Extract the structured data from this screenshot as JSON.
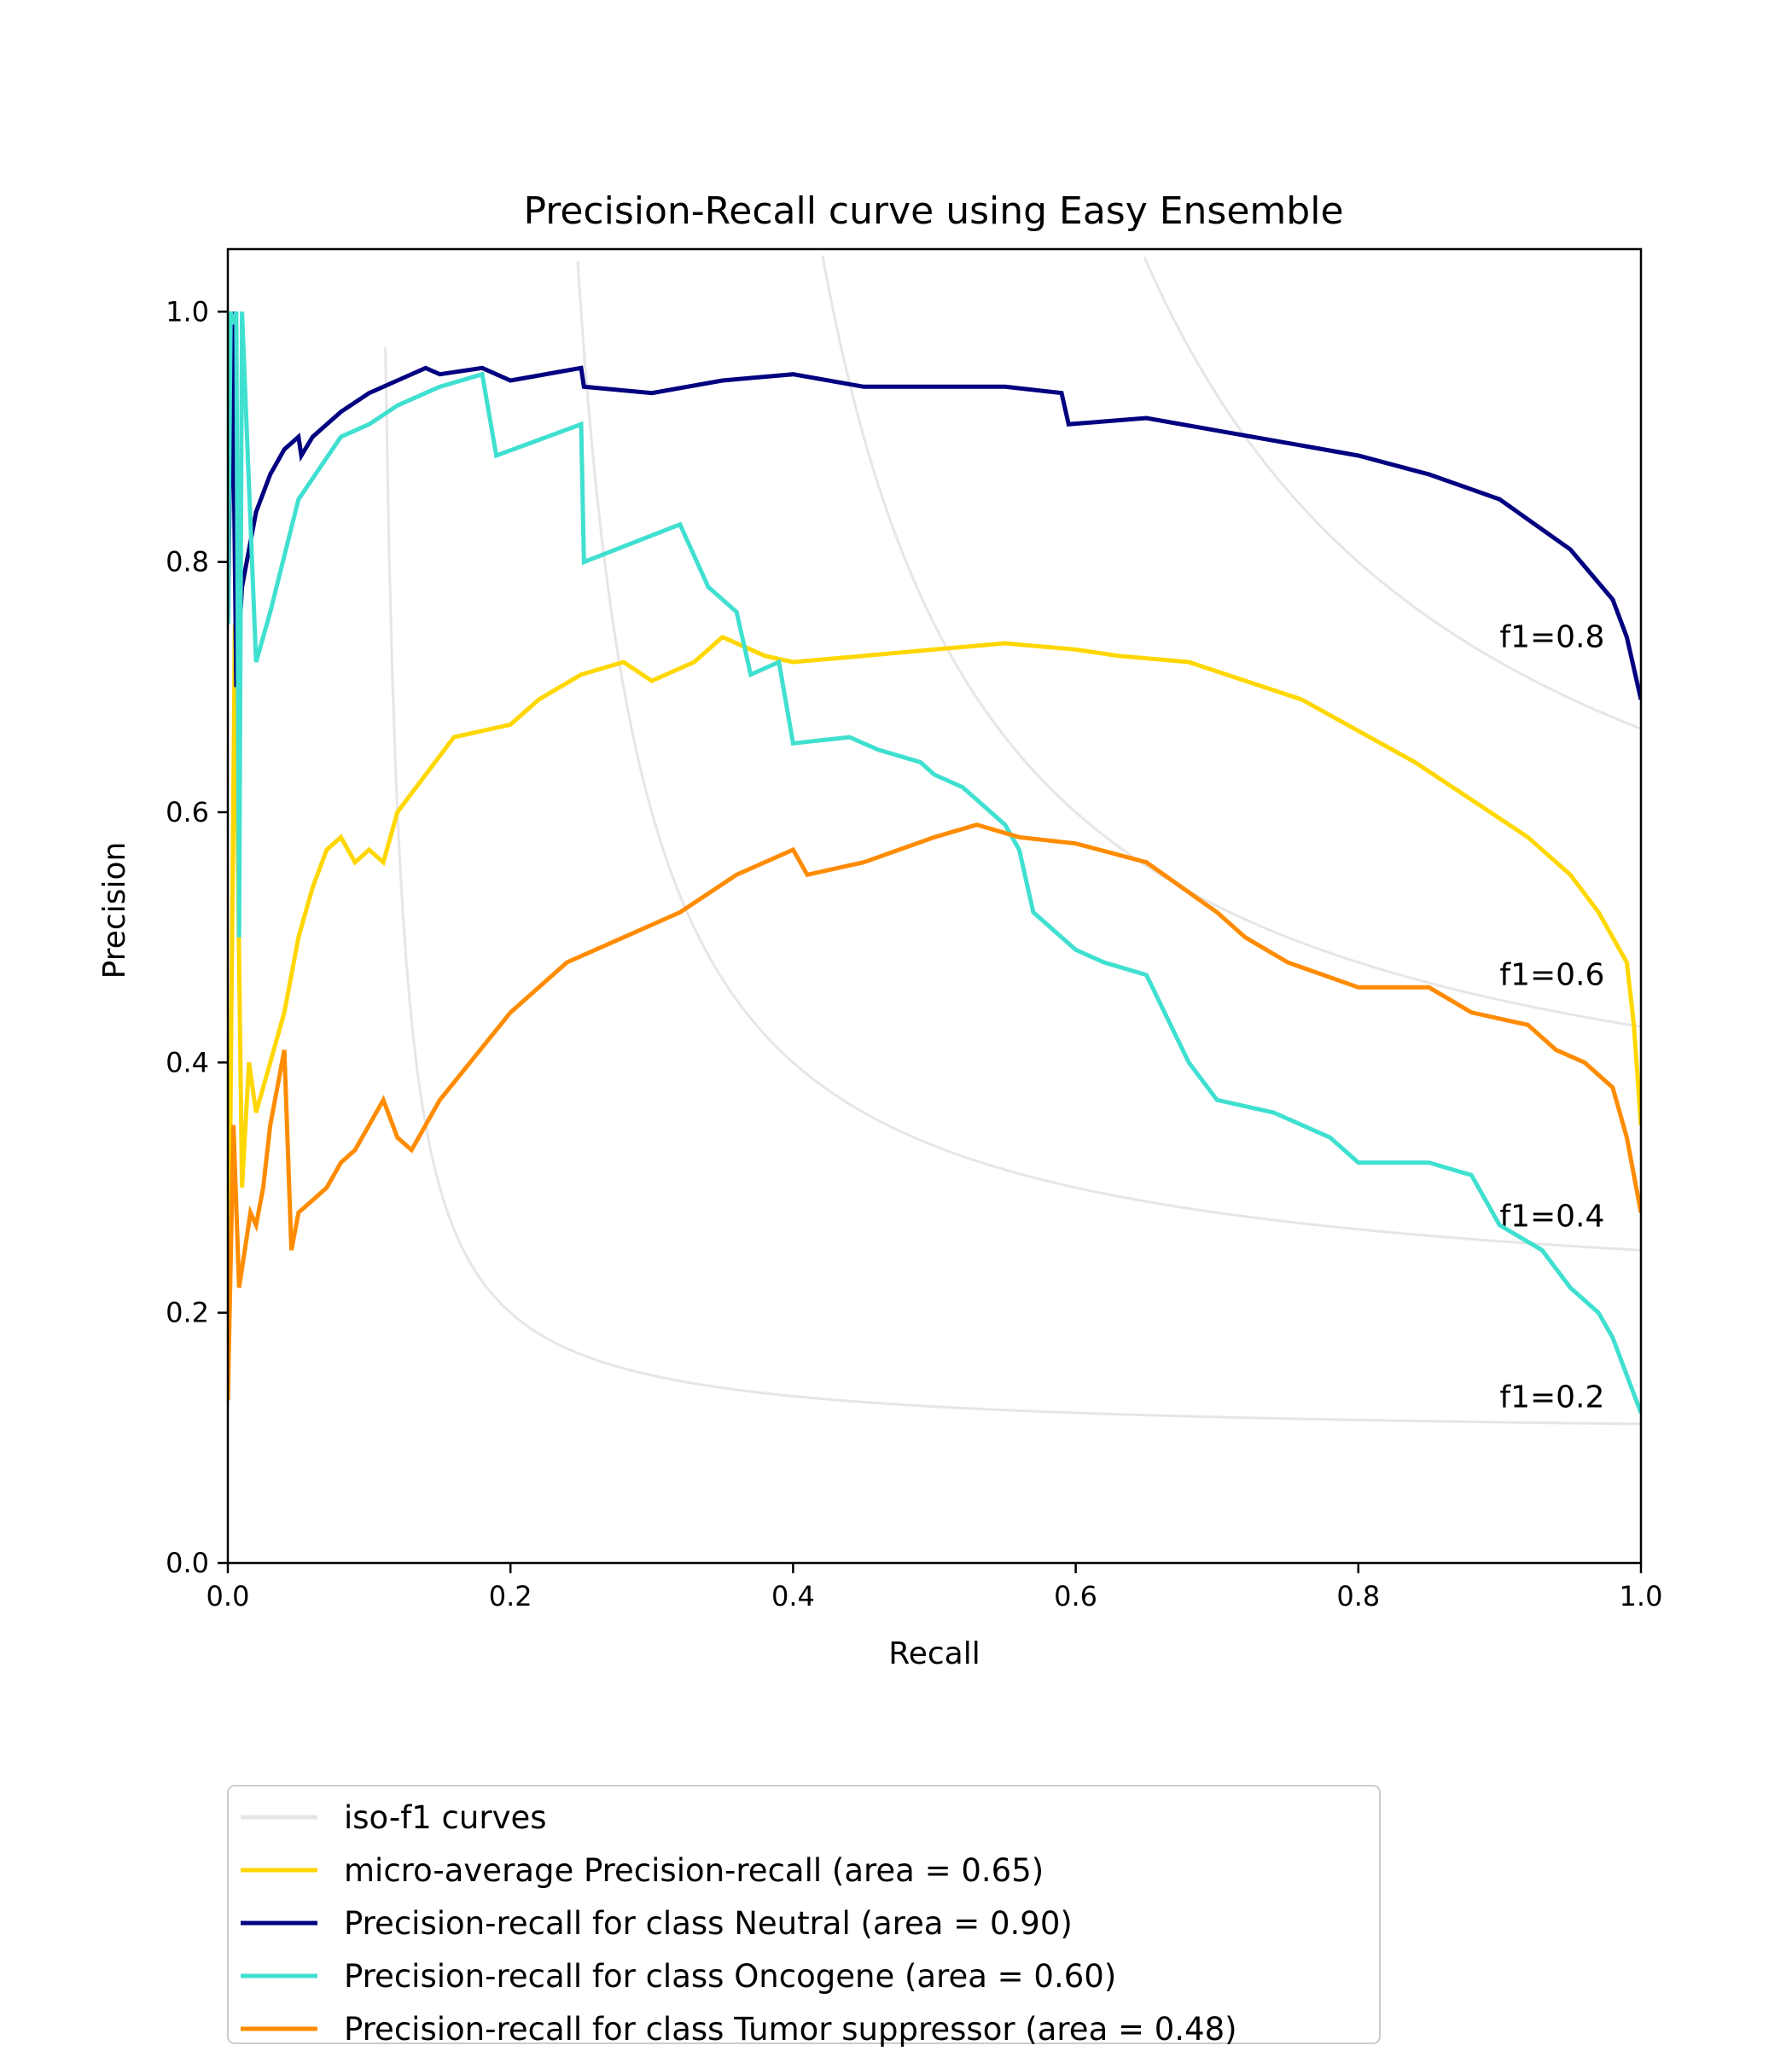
{
  "chart_data": {
    "type": "line",
    "title": "Precision-Recall curve using Easy Ensemble",
    "xlabel": "Recall",
    "ylabel": "Precision",
    "xlim": [
      0.0,
      1.0
    ],
    "ylim": [
      0.0,
      1.05
    ],
    "xticks": [
      "0.0",
      "0.2",
      "0.4",
      "0.6",
      "0.8",
      "1.0"
    ],
    "yticks": [
      "0.0",
      "0.2",
      "0.4",
      "0.6",
      "0.8",
      "1.0"
    ],
    "grid": false,
    "legend_position": "below-left",
    "iso_f1": [
      {
        "f1": 0.2,
        "label": "f1=0.2"
      },
      {
        "f1": 0.4,
        "label": "f1=0.4"
      },
      {
        "f1": 0.6,
        "label": "f1=0.6"
      },
      {
        "f1": 0.8,
        "label": "f1=0.8"
      }
    ],
    "iso_f1_legend": "iso-f1 curves",
    "iso_color": "#e6e6e6",
    "series": [
      {
        "name": "micro-average Precision-recall (area = 0.65)",
        "color": "#ffd700",
        "x": [
          0.0,
          0.005,
          0.01,
          0.015,
          0.02,
          0.03,
          0.04,
          0.05,
          0.06,
          0.07,
          0.08,
          0.09,
          0.1,
          0.11,
          0.12,
          0.14,
          0.16,
          0.18,
          0.2,
          0.22,
          0.25,
          0.28,
          0.3,
          0.33,
          0.35,
          0.38,
          0.4,
          0.45,
          0.5,
          0.55,
          0.6,
          0.63,
          0.68,
          0.72,
          0.76,
          0.8,
          0.84,
          0.88,
          0.92,
          0.95,
          0.97,
          0.98,
          0.99,
          0.995,
          1.0
        ],
        "y": [
          0.13,
          0.75,
          0.3,
          0.4,
          0.36,
          0.4,
          0.44,
          0.5,
          0.54,
          0.57,
          0.58,
          0.56,
          0.57,
          0.56,
          0.6,
          0.63,
          0.66,
          0.665,
          0.67,
          0.69,
          0.71,
          0.72,
          0.705,
          0.72,
          0.74,
          0.725,
          0.72,
          0.725,
          0.73,
          0.735,
          0.73,
          0.725,
          0.72,
          0.705,
          0.69,
          0.665,
          0.64,
          0.61,
          0.58,
          0.55,
          0.52,
          0.5,
          0.48,
          0.43,
          0.35
        ]
      },
      {
        "name": "Precision-recall for class Neutral (area = 0.90)",
        "color": "#000080",
        "x": [
          0.0,
          0.003,
          0.006,
          0.01,
          0.02,
          0.03,
          0.04,
          0.05,
          0.052,
          0.06,
          0.08,
          0.1,
          0.12,
          0.14,
          0.15,
          0.18,
          0.2,
          0.25,
          0.252,
          0.3,
          0.35,
          0.4,
          0.45,
          0.5,
          0.55,
          0.59,
          0.595,
          0.65,
          0.7,
          0.75,
          0.8,
          0.85,
          0.9,
          0.95,
          0.98,
          0.99,
          1.0
        ],
        "y": [
          0.75,
          1.0,
          0.7,
          0.78,
          0.84,
          0.87,
          0.89,
          0.9,
          0.885,
          0.9,
          0.92,
          0.935,
          0.945,
          0.955,
          0.95,
          0.955,
          0.945,
          0.955,
          0.94,
          0.935,
          0.945,
          0.95,
          0.94,
          0.94,
          0.94,
          0.935,
          0.91,
          0.915,
          0.905,
          0.895,
          0.885,
          0.87,
          0.85,
          0.81,
          0.77,
          0.74,
          0.69
        ]
      },
      {
        "name": "Precision-recall for class Oncogene (area = 0.60)",
        "color": "#40e0d0",
        "x": [
          0.0,
          0.002,
          0.004,
          0.006,
          0.008,
          0.01,
          0.02,
          0.03,
          0.05,
          0.08,
          0.1,
          0.12,
          0.15,
          0.18,
          0.19,
          0.25,
          0.252,
          0.32,
          0.34,
          0.36,
          0.37,
          0.39,
          0.4,
          0.44,
          0.46,
          0.49,
          0.5,
          0.52,
          0.55,
          0.56,
          0.57,
          0.6,
          0.62,
          0.65,
          0.68,
          0.7,
          0.74,
          0.78,
          0.8,
          0.85,
          0.88,
          0.9,
          0.93,
          0.95,
          0.97,
          0.98,
          0.99,
          1.0
        ],
        "y": [
          0.75,
          1.0,
          0.99,
          1.0,
          0.5,
          1.0,
          0.72,
          0.76,
          0.85,
          0.9,
          0.91,
          0.925,
          0.94,
          0.95,
          0.885,
          0.91,
          0.8,
          0.83,
          0.78,
          0.76,
          0.71,
          0.72,
          0.655,
          0.66,
          0.65,
          0.64,
          0.63,
          0.62,
          0.59,
          0.57,
          0.52,
          0.49,
          0.48,
          0.47,
          0.4,
          0.37,
          0.36,
          0.34,
          0.32,
          0.32,
          0.31,
          0.27,
          0.25,
          0.22,
          0.2,
          0.18,
          0.15,
          0.12
        ]
      },
      {
        "name": "Precision-recall for class Tumor suppressor (area = 0.48)",
        "color": "#ff8c00",
        "x": [
          0.0,
          0.004,
          0.008,
          0.012,
          0.016,
          0.02,
          0.025,
          0.03,
          0.035,
          0.04,
          0.045,
          0.05,
          0.06,
          0.07,
          0.08,
          0.09,
          0.1,
          0.11,
          0.12,
          0.13,
          0.15,
          0.2,
          0.24,
          0.28,
          0.32,
          0.36,
          0.4,
          0.41,
          0.45,
          0.5,
          0.53,
          0.56,
          0.6,
          0.65,
          0.7,
          0.72,
          0.75,
          0.8,
          0.85,
          0.88,
          0.92,
          0.94,
          0.96,
          0.98,
          0.99,
          1.0
        ],
        "y": [
          0.13,
          0.35,
          0.22,
          0.25,
          0.28,
          0.27,
          0.3,
          0.35,
          0.38,
          0.41,
          0.25,
          0.28,
          0.29,
          0.3,
          0.32,
          0.33,
          0.35,
          0.37,
          0.34,
          0.33,
          0.37,
          0.44,
          0.48,
          0.5,
          0.52,
          0.55,
          0.57,
          0.55,
          0.56,
          0.58,
          0.59,
          0.58,
          0.575,
          0.56,
          0.52,
          0.5,
          0.48,
          0.46,
          0.46,
          0.44,
          0.43,
          0.41,
          0.4,
          0.38,
          0.34,
          0.28
        ]
      }
    ]
  }
}
